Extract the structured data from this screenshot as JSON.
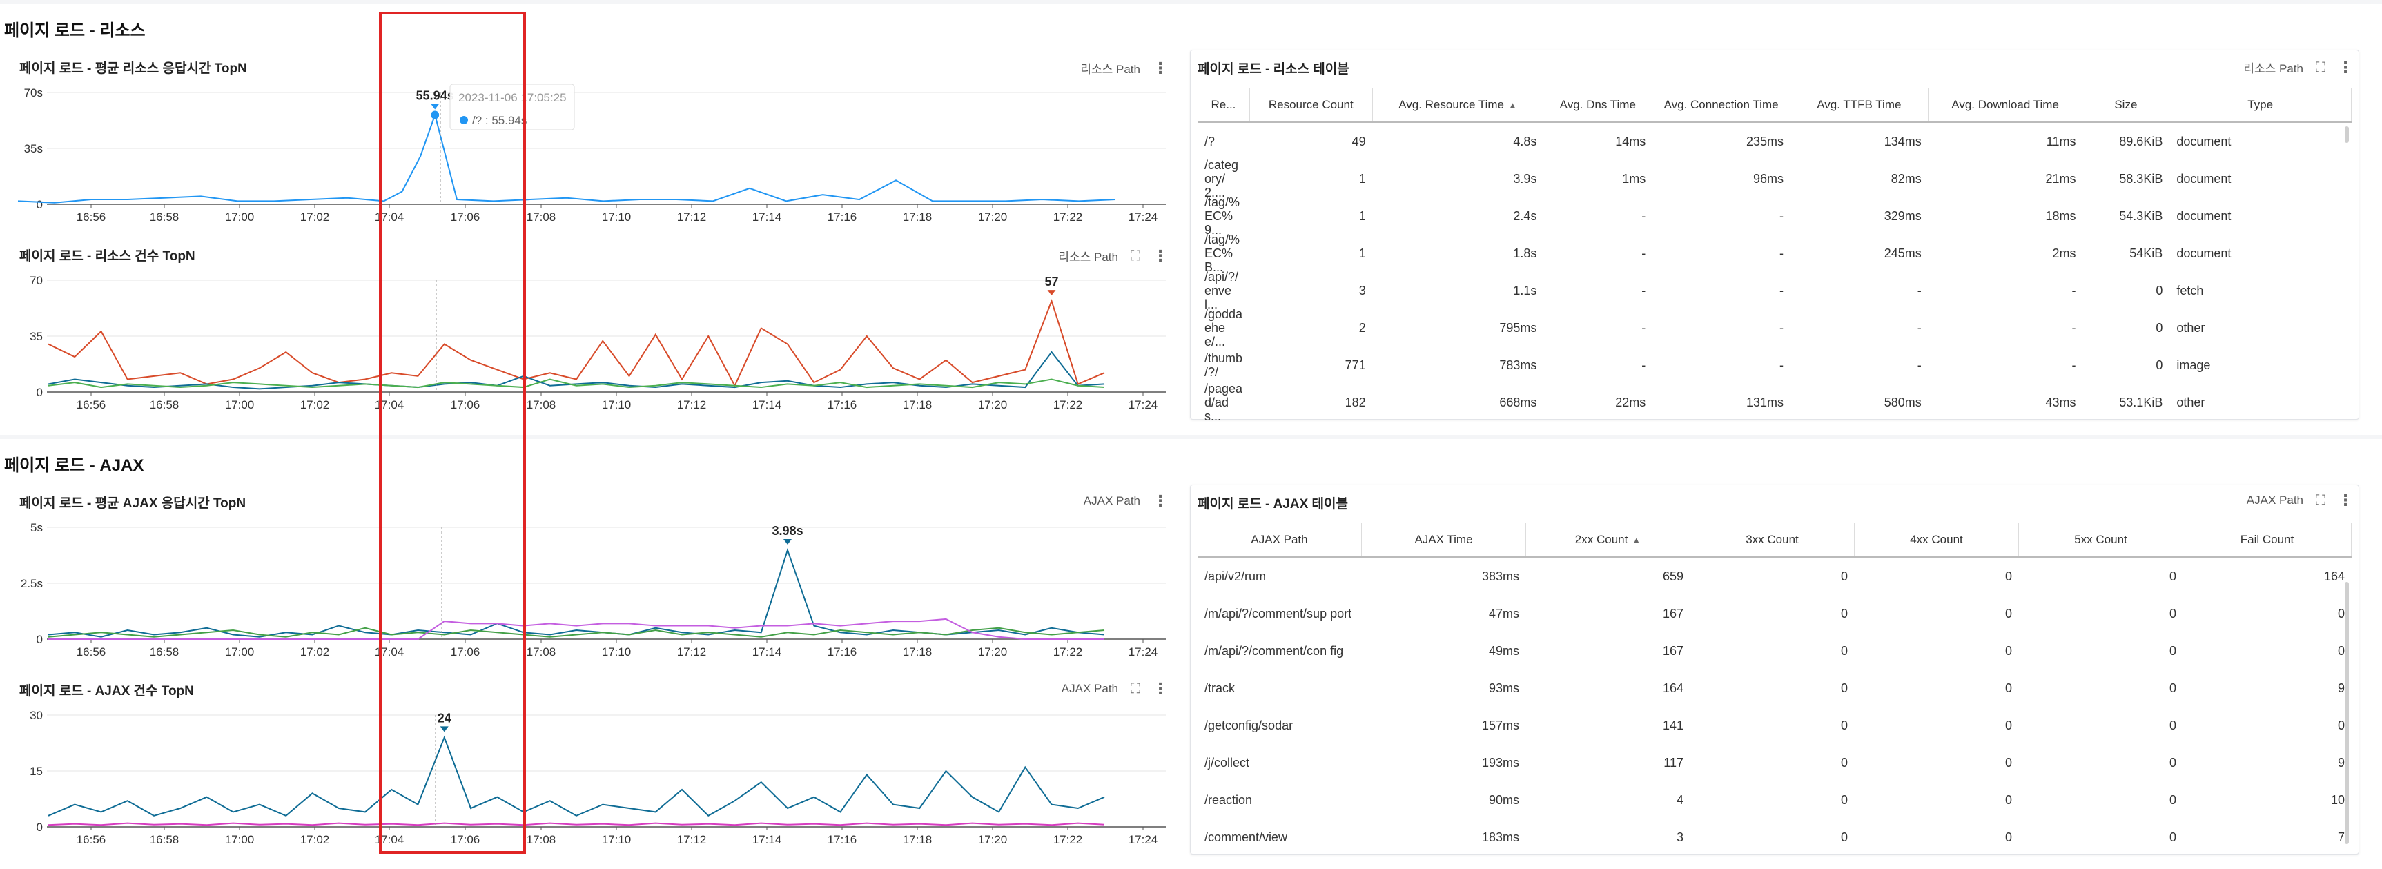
{
  "colors": {
    "accent": "#2196f3",
    "highlight": "#e02424",
    "red_series": "#d84b2a",
    "teal": "#0f6c95"
  },
  "resources": {
    "title": "페이지 로드 - 리소스",
    "avg_chart": {
      "title": "페이지 로드 - 평균 리소스 응답시간 TopN",
      "path_label": "리소스 Path",
      "peak_label": "55.94s",
      "tooltip": {
        "time": "2023-11-06 17:05:25",
        "text": "/? : 55.94s"
      }
    },
    "count_chart": {
      "title": "페이지 로드 - 리소스 건수 TopN",
      "path_label": "리소스 Path",
      "peak_label": "57"
    },
    "table": {
      "title": "페이지 로드 - 리소스 테이블",
      "path_label": "리소스 Path",
      "headers": [
        "Re...",
        "Resource Count",
        "Avg. Resource Time",
        "Avg. Dns Time",
        "Avg. Connection Time",
        "Avg. TTFB Time",
        "Avg. Download Time",
        "Size",
        "Type"
      ],
      "sort_arrow": "▲",
      "rows": [
        [
          "/?",
          "49",
          "4.8s",
          "14ms",
          "235ms",
          "134ms",
          "11ms",
          "89.6KiB",
          "document"
        ],
        [
          "/categ ory/2....",
          "1",
          "3.9s",
          "1ms",
          "96ms",
          "82ms",
          "21ms",
          "58.3KiB",
          "document"
        ],
        [
          "/tag/% EC%9...",
          "1",
          "2.4s",
          "-",
          "-",
          "329ms",
          "18ms",
          "54.3KiB",
          "document"
        ],
        [
          "/tag/% EC%B...",
          "1",
          "1.8s",
          "-",
          "-",
          "245ms",
          "2ms",
          "54KiB",
          "document"
        ],
        [
          "/api/?/ envel...",
          "3",
          "1.1s",
          "-",
          "-",
          "-",
          "-",
          "0",
          "fetch"
        ],
        [
          "/godda ehee/...",
          "2",
          "795ms",
          "-",
          "-",
          "-",
          "-",
          "0",
          "other"
        ],
        [
          "/thumb /?/",
          "771",
          "783ms",
          "-",
          "-",
          "-",
          "-",
          "0",
          "image"
        ],
        [
          "/pagea d/ads...",
          "182",
          "668ms",
          "22ms",
          "131ms",
          "580ms",
          "43ms",
          "53.1KiB",
          "other"
        ]
      ]
    }
  },
  "ajax": {
    "title": "페이지 로드 - AJAX",
    "avg_chart": {
      "title": "페이지 로드 - 평균 AJAX 응답시간 TopN",
      "path_label": "AJAX Path",
      "peak_label": "3.98s"
    },
    "count_chart": {
      "title": "페이지 로드 - AJAX 건수 TopN",
      "path_label": "AJAX Path",
      "peak_label": "24"
    },
    "table": {
      "title": "페이지 로드 - AJAX 테이블",
      "path_label": "AJAX Path",
      "headers": [
        "AJAX Path",
        "AJAX Time",
        "2xx Count",
        "3xx Count",
        "4xx Count",
        "5xx Count",
        "Fail Count"
      ],
      "sort_arrow": "▲",
      "rows": [
        [
          "/api/v2/rum",
          "383ms",
          "659",
          "0",
          "0",
          "0",
          "164"
        ],
        [
          "/m/api/?/comment/sup port",
          "47ms",
          "167",
          "0",
          "0",
          "0",
          "0"
        ],
        [
          "/m/api/?/comment/con fig",
          "49ms",
          "167",
          "0",
          "0",
          "0",
          "0"
        ],
        [
          "/track",
          "93ms",
          "164",
          "0",
          "0",
          "0",
          "9"
        ],
        [
          "/getconfig/sodar",
          "157ms",
          "141",
          "0",
          "0",
          "0",
          "0"
        ],
        [
          "/j/collect",
          "193ms",
          "117",
          "0",
          "0",
          "0",
          "9"
        ],
        [
          "/reaction",
          "90ms",
          "4",
          "0",
          "0",
          "0",
          "10"
        ],
        [
          "/comment/view",
          "183ms",
          "3",
          "0",
          "0",
          "0",
          "7"
        ]
      ]
    }
  },
  "chart_data": [
    {
      "type": "line",
      "title": "페이지 로드 - 평균 리소스 응답시간 TopN",
      "x_ticks": [
        "16:56",
        "16:58",
        "17:00",
        "17:02",
        "17:04",
        "17:06",
        "17:08",
        "17:10",
        "17:12",
        "17:14",
        "17:16",
        "17:18",
        "17:20",
        "17:22",
        "17:24"
      ],
      "y_ticks": [
        "0",
        "35s",
        "70s"
      ],
      "ylim": [
        0,
        70
      ],
      "series": [
        {
          "name": "/?",
          "x_min": [
            54,
            55,
            56,
            57,
            58,
            59,
            60,
            61,
            62,
            63,
            64,
            64.5,
            65,
            65.4,
            66,
            67,
            68,
            69,
            70,
            71,
            72,
            73,
            74,
            75,
            76,
            77,
            78,
            79,
            80,
            81,
            82,
            83,
            84
          ],
          "values": [
            2,
            1,
            3,
            3,
            4,
            5,
            2,
            2,
            3,
            4,
            2,
            8,
            30,
            55.94,
            3,
            2,
            3,
            4,
            2,
            3,
            3,
            2,
            10,
            2,
            6,
            3,
            15,
            2,
            2,
            2,
            3,
            2,
            3
          ]
        }
      ],
      "peak": {
        "x_min": 65.4,
        "value": 55.94,
        "label": "55.94s"
      }
    },
    {
      "type": "line",
      "title": "페이지 로드 - 리소스 건수 TopN",
      "x_ticks": [
        "16:56",
        "16:58",
        "17:00",
        "17:02",
        "17:04",
        "17:06",
        "17:08",
        "17:10",
        "17:12",
        "17:14",
        "17:16",
        "17:18",
        "17:20",
        "17:22",
        "17:24"
      ],
      "y_ticks": [
        "0",
        "35",
        "70"
      ],
      "ylim": [
        0,
        70
      ],
      "series": [
        {
          "name": "red",
          "values": [
            30,
            22,
            38,
            8,
            10,
            12,
            5,
            8,
            15,
            25,
            12,
            6,
            8,
            12,
            10,
            30,
            20,
            14,
            8,
            12,
            8,
            32,
            10,
            36,
            8,
            35,
            4,
            40,
            30,
            6,
            14,
            35,
            15,
            8,
            20,
            6,
            10,
            14,
            57,
            5,
            12
          ]
        },
        {
          "name": "teal",
          "values": [
            5,
            8,
            6,
            4,
            3,
            4,
            5,
            3,
            2,
            3,
            4,
            6,
            5,
            4,
            3,
            5,
            6,
            4,
            10,
            4,
            5,
            6,
            4,
            3,
            5,
            4,
            3,
            6,
            7,
            4,
            3,
            5,
            6,
            4,
            3,
            5,
            4,
            3,
            25,
            4,
            5
          ]
        },
        {
          "name": "green",
          "values": [
            4,
            6,
            3,
            5,
            4,
            3,
            4,
            6,
            5,
            4,
            3,
            4,
            5,
            4,
            3,
            6,
            5,
            4,
            3,
            8,
            4,
            5,
            3,
            4,
            6,
            5,
            4,
            3,
            5,
            4,
            6,
            3,
            4,
            5,
            4,
            3,
            6,
            5,
            8,
            4,
            3
          ]
        }
      ],
      "peak": {
        "label": "57",
        "value": 57
      }
    },
    {
      "type": "line",
      "title": "페이지 로드 - 평균 AJAX 응답시간 TopN",
      "x_ticks": [
        "16:56",
        "16:58",
        "17:00",
        "17:02",
        "17:04",
        "17:06",
        "17:08",
        "17:10",
        "17:12",
        "17:14",
        "17:16",
        "17:18",
        "17:20",
        "17:22",
        "17:24"
      ],
      "y_ticks": [
        "0",
        "2.5s",
        "5s"
      ],
      "ylim": [
        0,
        5
      ],
      "series": [
        {
          "name": "teal",
          "values": [
            0.2,
            0.3,
            0.1,
            0.4,
            0.2,
            0.3,
            0.5,
            0.2,
            0.1,
            0.3,
            0.2,
            0.6,
            0.3,
            0.2,
            0.4,
            0.3,
            0.2,
            0.7,
            0.3,
            0.2,
            0.4,
            0.3,
            0.2,
            0.5,
            0.3,
            0.2,
            0.4,
            0.3,
            3.98,
            0.6,
            0.3,
            0.2,
            0.4,
            0.3,
            0.2,
            0.3,
            0.4,
            0.2,
            0.5,
            0.3,
            0.2
          ]
        },
        {
          "name": "green",
          "values": [
            0.1,
            0.2,
            0.3,
            0.2,
            0.1,
            0.2,
            0.3,
            0.4,
            0.2,
            0.1,
            0.3,
            0.2,
            0.5,
            0.2,
            0.3,
            0.2,
            0.4,
            0.3,
            0.2,
            0.1,
            0.2,
            0.3,
            0.2,
            0.4,
            0.2,
            0.3,
            0.2,
            0.1,
            0.3,
            0.2,
            0.4,
            0.3,
            0.2,
            0.3,
            0.2,
            0.4,
            0.5,
            0.3,
            0.2,
            0.3,
            0.4
          ]
        },
        {
          "name": "violet",
          "values": [
            0,
            0,
            0,
            0,
            0,
            0,
            0,
            0,
            0,
            0,
            0,
            0,
            0,
            0,
            0,
            0.8,
            0.7,
            0.7,
            0.6,
            0.7,
            0.6,
            0.7,
            0.7,
            0.6,
            0.6,
            0.6,
            0.5,
            0.6,
            0.6,
            0.7,
            0.6,
            0.7,
            0.8,
            0.8,
            0.9,
            0.3,
            0.1,
            0,
            0,
            0,
            0
          ]
        }
      ],
      "peak": {
        "label": "3.98s",
        "value": 3.98
      }
    },
    {
      "type": "line",
      "title": "페이지 로드 - AJAX 건수 TopN",
      "x_ticks": [
        "16:56",
        "16:58",
        "17:00",
        "17:02",
        "17:04",
        "17:06",
        "17:08",
        "17:10",
        "17:12",
        "17:14",
        "17:16",
        "17:18",
        "17:20",
        "17:22",
        "17:24"
      ],
      "y_ticks": [
        "0",
        "15",
        "30"
      ],
      "ylim": [
        0,
        30
      ],
      "series": [
        {
          "name": "teal",
          "values": [
            3,
            6,
            4,
            7,
            3,
            5,
            8,
            4,
            6,
            3,
            9,
            5,
            4,
            10,
            6,
            24,
            5,
            8,
            4,
            7,
            3,
            6,
            5,
            4,
            10,
            3,
            7,
            12,
            5,
            8,
            4,
            14,
            6,
            5,
            15,
            8,
            4,
            16,
            6,
            5,
            8
          ]
        },
        {
          "name": "magenta",
          "values": [
            0.5,
            0.8,
            0.5,
            1,
            0.6,
            0.8,
            0.5,
            1,
            0.6,
            0.8,
            0.5,
            1,
            0.6,
            0.8,
            0.5,
            1,
            0.6,
            0.8,
            0.5,
            1,
            0.6,
            0.8,
            0.5,
            1,
            0.6,
            0.8,
            0.5,
            1,
            0.6,
            0.8,
            0.5,
            1,
            0.6,
            0.8,
            0.5,
            1,
            0.6,
            0.8,
            0.5,
            1,
            0.6
          ]
        }
      ],
      "peak": {
        "label": "24",
        "value": 24
      }
    }
  ]
}
